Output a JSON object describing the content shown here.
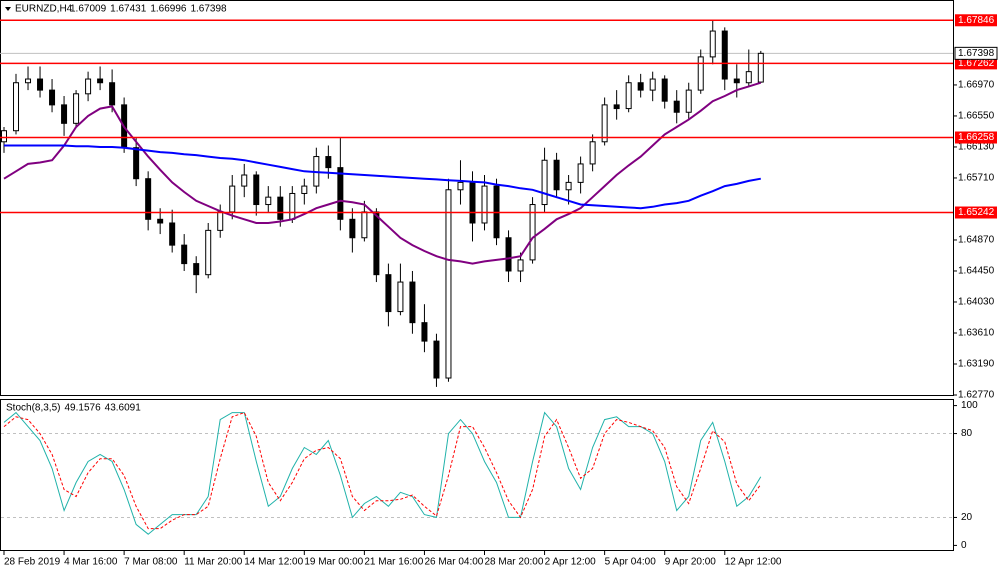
{
  "chart_data": [
    {
      "type": "candlestick",
      "symbol": "EURNZD,H4",
      "open": [
        1.662,
        1.6635,
        1.67,
        1.6705,
        1.669,
        1.667,
        1.6645,
        1.6685,
        1.6705,
        1.67,
        1.667,
        1.6612,
        1.657,
        1.6515,
        1.651,
        1.648,
        1.6455,
        1.644,
        1.65,
        1.6525,
        1.656,
        1.6575,
        1.6535,
        1.6545,
        1.6515,
        1.655,
        1.656,
        1.66,
        1.6585,
        1.6515,
        1.649,
        1.6525,
        1.644,
        1.639,
        1.643,
        1.6375,
        1.635,
        1.63,
        1.6555,
        1.6565,
        1.651,
        1.656,
        1.649,
        1.6445,
        1.646,
        1.6535,
        1.6595,
        1.6555,
        1.6565,
        1.659,
        1.662,
        1.667,
        1.6665,
        1.67,
        1.669,
        1.6705,
        1.6675,
        1.666,
        1.669,
        1.6735,
        1.677,
        1.6705,
        1.67,
        1.67009
      ],
      "high": [
        1.664,
        1.6712,
        1.6722,
        1.6722,
        1.6705,
        1.6682,
        1.669,
        1.6715,
        1.6722,
        1.6718,
        1.668,
        1.6625,
        1.658,
        1.653,
        1.6528,
        1.6495,
        1.6465,
        1.651,
        1.6535,
        1.6575,
        1.659,
        1.658,
        1.656,
        1.656,
        1.656,
        1.657,
        1.6612,
        1.6615,
        1.6625,
        1.653,
        1.654,
        1.653,
        1.6455,
        1.6455,
        1.6445,
        1.64,
        1.636,
        1.657,
        1.6595,
        1.658,
        1.6575,
        1.657,
        1.65,
        1.647,
        1.6545,
        1.6612,
        1.6605,
        1.6575,
        1.66,
        1.663,
        1.668,
        1.669,
        1.671,
        1.6712,
        1.6715,
        1.671,
        1.669,
        1.67,
        1.6745,
        1.6784,
        1.6775,
        1.6725,
        1.6745,
        1.67431
      ],
      "low": [
        1.6605,
        1.663,
        1.669,
        1.668,
        1.666,
        1.6628,
        1.664,
        1.6675,
        1.669,
        1.666,
        1.6605,
        1.656,
        1.65,
        1.6495,
        1.647,
        1.6445,
        1.6415,
        1.6435,
        1.649,
        1.6515,
        1.6545,
        1.652,
        1.6525,
        1.6505,
        1.651,
        1.6535,
        1.655,
        1.657,
        1.65,
        1.647,
        1.6485,
        1.643,
        1.637,
        1.6385,
        1.636,
        1.6335,
        1.6288,
        1.6295,
        1.6535,
        1.6485,
        1.65,
        1.648,
        1.643,
        1.643,
        1.6455,
        1.6525,
        1.6545,
        1.6535,
        1.655,
        1.658,
        1.6615,
        1.665,
        1.666,
        1.668,
        1.6675,
        1.6665,
        1.6645,
        1.665,
        1.6685,
        1.6725,
        1.669,
        1.668,
        1.6695,
        1.66996
      ],
      "close": [
        1.6635,
        1.67,
        1.6705,
        1.669,
        1.667,
        1.6645,
        1.6685,
        1.6705,
        1.67,
        1.667,
        1.6612,
        1.657,
        1.6515,
        1.651,
        1.648,
        1.6455,
        1.644,
        1.65,
        1.6525,
        1.656,
        1.6575,
        1.6535,
        1.6545,
        1.6515,
        1.655,
        1.656,
        1.66,
        1.6585,
        1.6515,
        1.649,
        1.6525,
        1.644,
        1.639,
        1.643,
        1.6375,
        1.635,
        1.63,
        1.6555,
        1.6565,
        1.651,
        1.656,
        1.649,
        1.6445,
        1.646,
        1.6535,
        1.6595,
        1.6555,
        1.6565,
        1.659,
        1.662,
        1.667,
        1.6665,
        1.67,
        1.669,
        1.6705,
        1.6675,
        1.666,
        1.669,
        1.6735,
        1.677,
        1.6705,
        1.67,
        1.6715,
        1.67398
      ],
      "overlays": [
        {
          "color": "#800080",
          "values": [
            1.657,
            1.658,
            1.659,
            1.6592,
            1.6595,
            1.6615,
            1.664,
            1.6655,
            1.6665,
            1.6668,
            1.664,
            1.662,
            1.66,
            1.6582,
            1.6565,
            1.6552,
            1.654,
            1.6533,
            1.6526,
            1.652,
            1.6515,
            1.651,
            1.651,
            1.6512,
            1.6515,
            1.6522,
            1.653,
            1.6535,
            1.654,
            1.6538,
            1.6535,
            1.652,
            1.6505,
            1.649,
            1.648,
            1.6472,
            1.6465,
            1.646,
            1.6458,
            1.6455,
            1.6458,
            1.646,
            1.6462,
            1.6465,
            1.649,
            1.6502,
            1.6515,
            1.6522,
            1.653,
            1.6545,
            1.656,
            1.6575,
            1.6588,
            1.66,
            1.6615,
            1.663,
            1.664,
            1.665,
            1.6662,
            1.6675,
            1.6682,
            1.669,
            1.6695,
            1.67
          ]
        },
        {
          "color": "#0000ff",
          "values": [
            1.6615,
            1.6615,
            1.6615,
            1.6615,
            1.6615,
            1.6615,
            1.6614,
            1.6614,
            1.6613,
            1.6613,
            1.6612,
            1.661,
            1.6608,
            1.6606,
            1.6605,
            1.6603,
            1.6602,
            1.66,
            1.6598,
            1.6597,
            1.6595,
            1.6592,
            1.6589,
            1.6586,
            1.6583,
            1.658,
            1.6579,
            1.6578,
            1.6577,
            1.6576,
            1.6575,
            1.6574,
            1.6573,
            1.6572,
            1.6571,
            1.657,
            1.6569,
            1.6568,
            1.6567,
            1.6566,
            1.6565,
            1.6562,
            1.656,
            1.6557,
            1.6555,
            1.655,
            1.6545,
            1.654,
            1.6535,
            1.6534,
            1.6533,
            1.6532,
            1.6531,
            1.653,
            1.6532,
            1.6535,
            1.6537,
            1.654,
            1.6547,
            1.6553,
            1.656,
            1.6563,
            1.6567,
            1.657
          ]
        }
      ],
      "levels": [
        1.67846,
        1.67262,
        1.66258,
        1.65242
      ],
      "level_color": "#ff0000",
      "xlim": [
        0,
        79
      ],
      "ylim": [
        1.6277,
        1.6808
      ],
      "xticks": [
        {
          "value": 0,
          "label": "28 Feb 2019"
        },
        {
          "value": 5,
          "label": "4 Mar 16:00"
        },
        {
          "value": 10,
          "label": "7 Mar 08:00"
        },
        {
          "value": 15,
          "label": "11 Mar 20:00"
        },
        {
          "value": 20,
          "label": "14 Mar 12:00"
        },
        {
          "value": 25,
          "label": "19 Mar 00:00"
        },
        {
          "value": 30,
          "label": "21 Mar 16:00"
        },
        {
          "value": 35,
          "label": "26 Mar 04:00"
        },
        {
          "value": 40,
          "label": "28 Mar 20:00"
        },
        {
          "value": 45,
          "label": "2 Apr 12:00"
        },
        {
          "value": 50,
          "label": "5 Apr 04:00"
        },
        {
          "value": 55,
          "label": "9 Apr 20:00"
        },
        {
          "value": 60,
          "label": "12 Apr 12:00"
        }
      ],
      "yticks": [
        {
          "value": 1.6697,
          "label": "1.66970"
        },
        {
          "value": 1.6655,
          "label": "1.66550"
        },
        {
          "value": 1.6613,
          "label": "1.66130"
        },
        {
          "value": 1.6571,
          "label": "1.65710"
        },
        {
          "value": 1.6487,
          "label": "1.64870"
        },
        {
          "value": 1.6445,
          "label": "1.64450"
        },
        {
          "value": 1.6403,
          "label": "1.64030"
        },
        {
          "value": 1.6361,
          "label": "1.63610"
        },
        {
          "value": 1.6319,
          "label": "1.63190"
        },
        {
          "value": 1.6277,
          "label": "1.62770"
        }
      ]
    },
    {
      "type": "line",
      "title": "Stoch(8,3,5)",
      "series": [
        {
          "color": "#20b2aa",
          "values": [
            88,
            95,
            85,
            75,
            55,
            25,
            45,
            60,
            65,
            60,
            40,
            15,
            8,
            15,
            22,
            22,
            22,
            35,
            90,
            95,
            95,
            60,
            28,
            35,
            55,
            70,
            65,
            75,
            50,
            20,
            30,
            35,
            28,
            38,
            35,
            22,
            20,
            80,
            90,
            80,
            60,
            45,
            20,
            20,
            60,
            95,
            85,
            55,
            40,
            70,
            90,
            92,
            85,
            85,
            80,
            60,
            25,
            35,
            75,
            88,
            60,
            28,
            35,
            49.1576
          ]
        },
        {
          "color": "#ff0000",
          "dashed": true,
          "values": [
            85,
            92,
            90,
            80,
            65,
            40,
            35,
            52,
            62,
            62,
            50,
            28,
            12,
            12,
            18,
            22,
            22,
            28,
            62,
            92,
            95,
            78,
            45,
            32,
            45,
            62,
            68,
            70,
            62,
            35,
            25,
            32,
            32,
            33,
            36,
            28,
            21,
            50,
            85,
            85,
            70,
            52,
            32,
            20,
            40,
            78,
            90,
            70,
            48,
            55,
            80,
            90,
            88,
            85,
            82,
            70,
            42,
            30,
            55,
            82,
            74,
            44,
            32,
            43.6091
          ]
        }
      ],
      "ylim": [
        -4,
        104
      ],
      "yticks": [
        0,
        20,
        80,
        100
      ],
      "levels": [
        20,
        80
      ]
    }
  ]
}
